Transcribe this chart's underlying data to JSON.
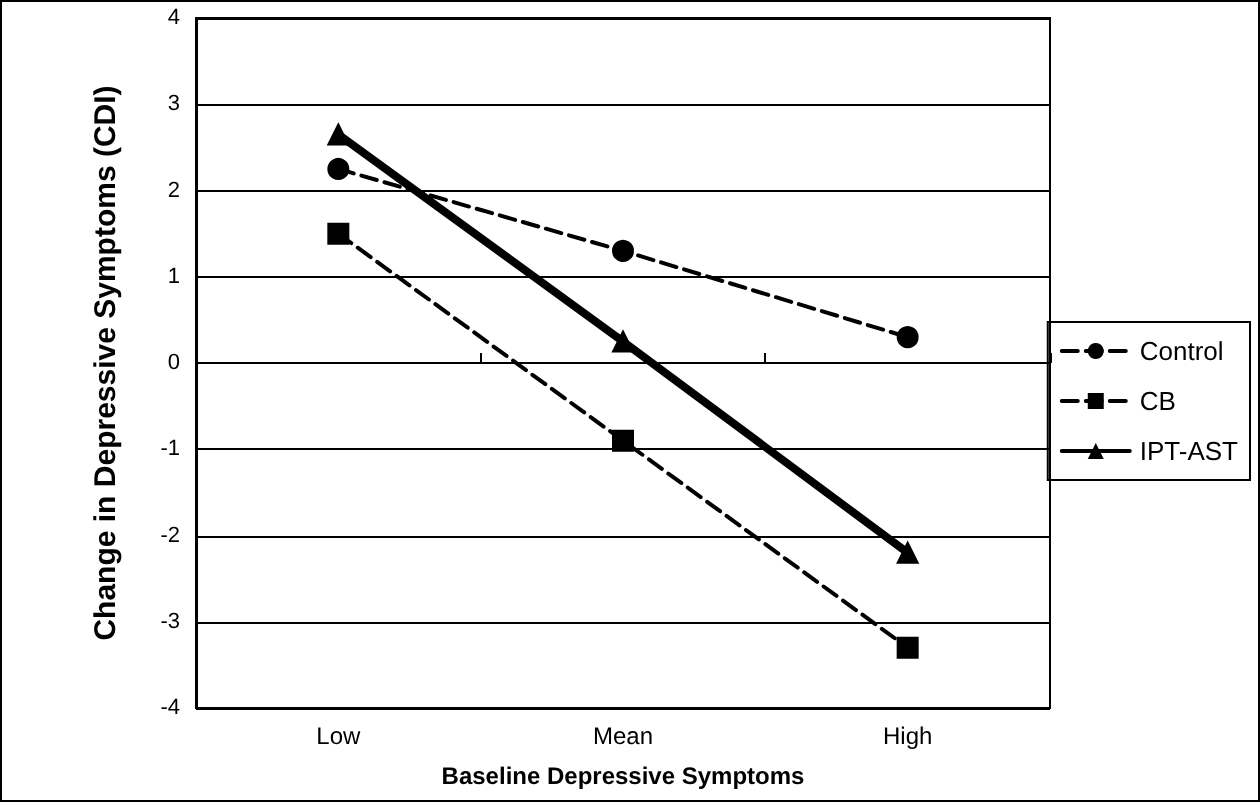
{
  "chart_data": {
    "type": "line",
    "xlabel": "Baseline Depressive Symptoms",
    "ylabel": "Change in Depressive Symptoms (CDI)",
    "categories": [
      "Low",
      "Mean",
      "High"
    ],
    "series": [
      {
        "name": "Control",
        "color": "#000000",
        "values": [
          2.25,
          1.3,
          0.3
        ],
        "marker": "circle",
        "line_style": "dashed"
      },
      {
        "name": "CB",
        "color": "#000000",
        "values": [
          1.5,
          -0.9,
          -3.3
        ],
        "marker": "square",
        "line_style": "dashed"
      },
      {
        "name": "IPT-AST",
        "color": "#000000",
        "values": [
          2.65,
          0.25,
          -2.2
        ],
        "marker": "triangle",
        "line_style": "solid"
      }
    ],
    "ylim": [
      -4,
      4
    ],
    "yticks": [
      -4,
      -3,
      -2,
      -1,
      0,
      1,
      2,
      3,
      4
    ],
    "grid": "y",
    "legend": "right"
  }
}
